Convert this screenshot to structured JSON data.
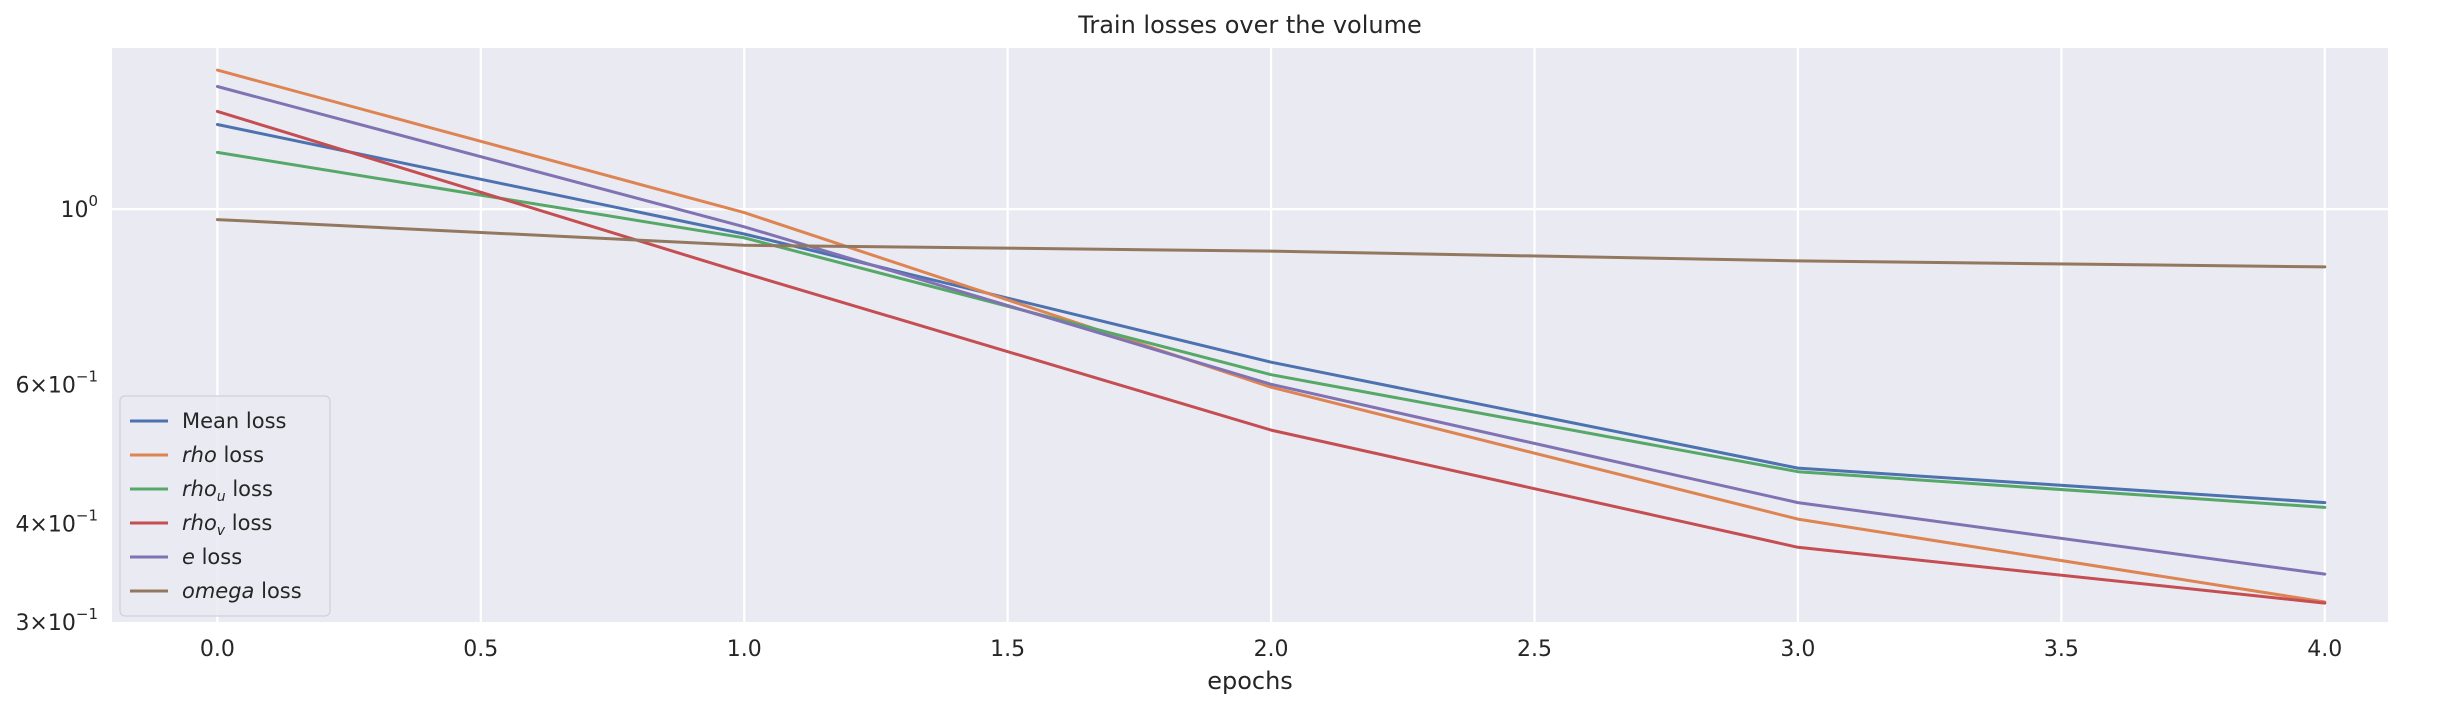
{
  "chart_data": {
    "type": "line",
    "title": "Train losses over the volume",
    "xlabel": "epochs",
    "ylabel": "",
    "yscale": "log",
    "x": [
      0,
      1,
      2,
      3,
      4
    ],
    "xlim": [
      -0.2,
      4.12
    ],
    "ylim": [
      0.3,
      1.6
    ],
    "x_ticks": [
      {
        "value": 0.0,
        "label": "0.0"
      },
      {
        "value": 0.5,
        "label": "0.5"
      },
      {
        "value": 1.0,
        "label": "1.0"
      },
      {
        "value": 1.5,
        "label": "1.5"
      },
      {
        "value": 2.0,
        "label": "2.0"
      },
      {
        "value": 2.5,
        "label": "2.5"
      },
      {
        "value": 3.0,
        "label": "3.0"
      },
      {
        "value": 3.5,
        "label": "3.5"
      },
      {
        "value": 4.0,
        "label": "4.0"
      }
    ],
    "y_major_ticks": [
      {
        "value": 1.0,
        "label_base": "10",
        "label_exp": "0",
        "label_mult": ""
      }
    ],
    "y_minor_ticks": [
      {
        "value": 0.3,
        "label_base": "10",
        "label_exp": "−1",
        "label_mult": "3×"
      },
      {
        "value": 0.4,
        "label_base": "10",
        "label_exp": "−1",
        "label_mult": "4×"
      },
      {
        "value": 0.6,
        "label_base": "10",
        "label_exp": "−1",
        "label_mult": "6×"
      }
    ],
    "grid": true,
    "legend_position": "lower-left",
    "background": "#eaeaf2",
    "series": [
      {
        "name": "Mean loss",
        "legend_italic": "",
        "legend_sub": "",
        "legend_rest": "Mean loss",
        "color": "#4c72b0",
        "values": [
          1.28,
          0.93,
          0.64,
          0.47,
          0.425
        ]
      },
      {
        "name": "rho loss",
        "legend_italic": "rho",
        "legend_sub": "",
        "legend_rest": " loss",
        "color": "#dd8452",
        "values": [
          1.5,
          0.99,
          0.595,
          0.405,
          0.318
        ]
      },
      {
        "name": "rho_u loss",
        "legend_italic": "rho",
        "legend_sub": "u",
        "legend_rest": " loss",
        "color": "#55a868",
        "values": [
          1.18,
          0.92,
          0.617,
          0.465,
          0.419
        ]
      },
      {
        "name": "rho_v loss",
        "legend_italic": "rho",
        "legend_sub": "v",
        "legend_rest": " loss",
        "color": "#c44e52",
        "values": [
          1.33,
          0.83,
          0.525,
          0.373,
          0.317
        ]
      },
      {
        "name": "e loss",
        "legend_italic": "e",
        "legend_sub": "",
        "legend_rest": " loss",
        "color": "#8172b3",
        "values": [
          1.43,
          0.95,
          0.6,
          0.425,
          0.345
        ]
      },
      {
        "name": "omega loss",
        "legend_italic": "omega",
        "legend_sub": "",
        "legend_rest": " loss",
        "color": "#937860",
        "values": [
          0.97,
          0.9,
          0.885,
          0.86,
          0.845
        ]
      }
    ]
  }
}
